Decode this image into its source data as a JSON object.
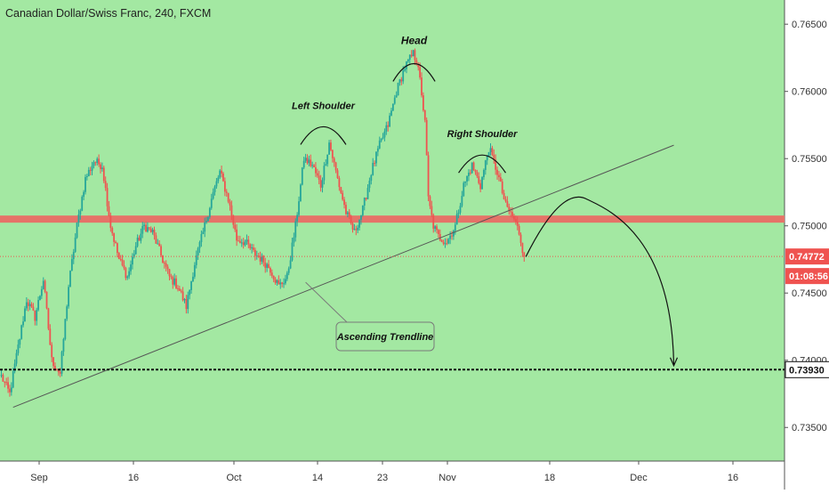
{
  "header": {
    "title": "Canadian Dollar/Swiss Franc, 240, FXCM"
  },
  "colors": {
    "background": "#a3e8a2",
    "bull": "#26a69a",
    "bear": "#ef5350",
    "resistance_band": "#e57368",
    "axis_bg": "#ffffff"
  },
  "annotations": {
    "head": "Head",
    "left_shoulder": "Left Shoulder",
    "right_shoulder": "Right Shoulder",
    "trendline": "Ascending Trendline"
  },
  "price_labels": {
    "current": "0.74772",
    "countdown": "01:08:56",
    "target": "0.73930"
  },
  "chart_data": {
    "type": "candlestick",
    "title": "Canadian Dollar/Swiss Franc, 240, FXCM",
    "ylim": [
      0.7325,
      0.7668
    ],
    "y_ticks": [
      "0.76500",
      "0.76000",
      "0.75500",
      "0.75000",
      "0.74500",
      "0.74000",
      "0.73500"
    ],
    "x_ticks": [
      "Sep",
      "16",
      "Oct",
      "14",
      "23",
      "Nov",
      "18",
      "Dec",
      "16"
    ],
    "price_path": [
      {
        "i": 0,
        "p": 0.7388
      },
      {
        "i": 5,
        "p": 0.7375
      },
      {
        "i": 10,
        "p": 0.741
      },
      {
        "i": 15,
        "p": 0.7445
      },
      {
        "i": 20,
        "p": 0.7432
      },
      {
        "i": 25,
        "p": 0.746
      },
      {
        "i": 30,
        "p": 0.74
      },
      {
        "i": 35,
        "p": 0.739
      },
      {
        "i": 40,
        "p": 0.7455
      },
      {
        "i": 45,
        "p": 0.75
      },
      {
        "i": 50,
        "p": 0.7535
      },
      {
        "i": 55,
        "p": 0.7548
      },
      {
        "i": 60,
        "p": 0.7545
      },
      {
        "i": 65,
        "p": 0.75
      },
      {
        "i": 70,
        "p": 0.7475
      },
      {
        "i": 75,
        "p": 0.7462
      },
      {
        "i": 80,
        "p": 0.7485
      },
      {
        "i": 85,
        "p": 0.75
      },
      {
        "i": 90,
        "p": 0.7495
      },
      {
        "i": 95,
        "p": 0.7478
      },
      {
        "i": 100,
        "p": 0.7462
      },
      {
        "i": 105,
        "p": 0.7455
      },
      {
        "i": 110,
        "p": 0.744
      },
      {
        "i": 115,
        "p": 0.7472
      },
      {
        "i": 120,
        "p": 0.7495
      },
      {
        "i": 125,
        "p": 0.752
      },
      {
        "i": 130,
        "p": 0.754
      },
      {
        "i": 135,
        "p": 0.752
      },
      {
        "i": 140,
        "p": 0.749
      },
      {
        "i": 145,
        "p": 0.7488
      },
      {
        "i": 150,
        "p": 0.748
      },
      {
        "i": 155,
        "p": 0.7475
      },
      {
        "i": 160,
        "p": 0.7468
      },
      {
        "i": 165,
        "p": 0.7455
      },
      {
        "i": 170,
        "p": 0.7462
      },
      {
        "i": 175,
        "p": 0.75
      },
      {
        "i": 180,
        "p": 0.755
      },
      {
        "i": 185,
        "p": 0.7545
      },
      {
        "i": 190,
        "p": 0.753
      },
      {
        "i": 195,
        "p": 0.7562
      },
      {
        "i": 200,
        "p": 0.7535
      },
      {
        "i": 205,
        "p": 0.751
      },
      {
        "i": 210,
        "p": 0.7495
      },
      {
        "i": 215,
        "p": 0.7512
      },
      {
        "i": 220,
        "p": 0.754
      },
      {
        "i": 225,
        "p": 0.756
      },
      {
        "i": 230,
        "p": 0.7575
      },
      {
        "i": 235,
        "p": 0.76
      },
      {
        "i": 240,
        "p": 0.7618
      },
      {
        "i": 245,
        "p": 0.7628
      },
      {
        "i": 248,
        "p": 0.762
      },
      {
        "i": 250,
        "p": 0.7595
      },
      {
        "i": 252,
        "p": 0.758
      },
      {
        "i": 254,
        "p": 0.752
      },
      {
        "i": 257,
        "p": 0.75
      },
      {
        "i": 260,
        "p": 0.7492
      },
      {
        "i": 265,
        "p": 0.7488
      },
      {
        "i": 270,
        "p": 0.75
      },
      {
        "i": 275,
        "p": 0.753
      },
      {
        "i": 280,
        "p": 0.7545
      },
      {
        "i": 285,
        "p": 0.753
      },
      {
        "i": 290,
        "p": 0.7558
      },
      {
        "i": 295,
        "p": 0.754
      },
      {
        "i": 300,
        "p": 0.7515
      },
      {
        "i": 305,
        "p": 0.7505
      },
      {
        "i": 308,
        "p": 0.7495
      },
      {
        "i": 311,
        "p": 0.7477
      }
    ],
    "resistance_level": 0.7505,
    "current_price": 0.74772,
    "target_level": 0.7393,
    "trendline": {
      "start": {
        "i": 7,
        "p": 0.7365
      },
      "end": {
        "i": 400,
        "p": 0.756
      }
    },
    "projection": {
      "start": {
        "i": 312,
        "p": 0.7477
      },
      "peak": {
        "i": 348,
        "p": 0.752
      },
      "end": {
        "i": 400,
        "p": 0.7396
      }
    },
    "hs_arcs": [
      {
        "label": "left_shoulder",
        "from": 178,
        "to": 205,
        "p": 0.7575
      },
      {
        "label": "head",
        "from": 233,
        "to": 258,
        "p": 0.7622
      },
      {
        "label": "right_shoulder",
        "from": 272,
        "to": 300,
        "p": 0.7554
      }
    ],
    "callout_anchor": {
      "i": 181,
      "p": 0.7458
    }
  }
}
